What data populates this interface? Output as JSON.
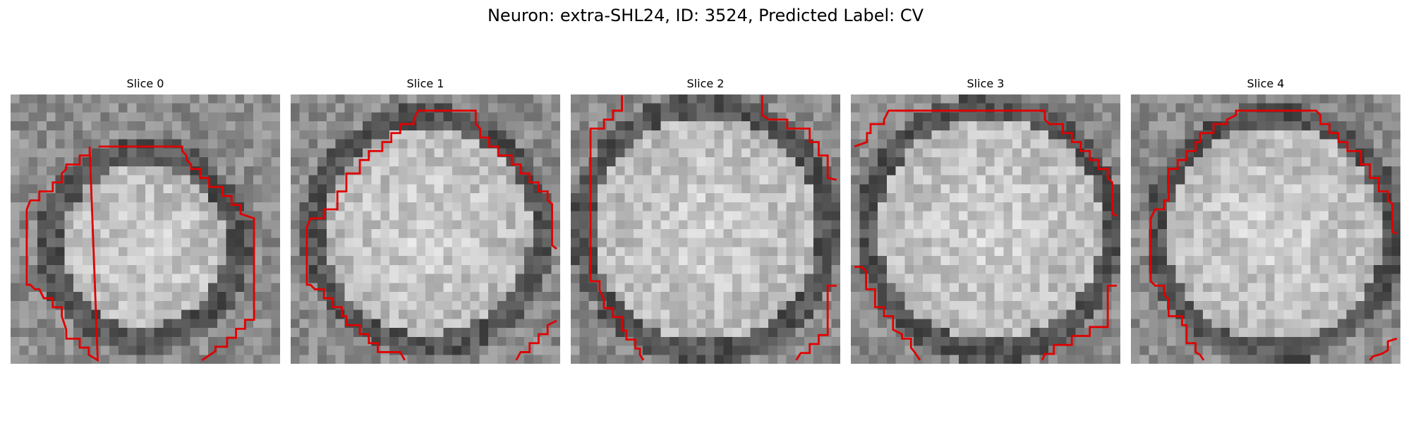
{
  "figure": {
    "title": "Neuron: extra-SHL24, ID: 3524, Predicted Label: CV"
  },
  "slices": [
    {
      "title": "Slice 0"
    },
    {
      "title": "Slice 1"
    },
    {
      "title": "Slice 2"
    },
    {
      "title": "Slice 3"
    },
    {
      "title": "Slice 4"
    }
  ],
  "contour_color": "#e00000"
}
